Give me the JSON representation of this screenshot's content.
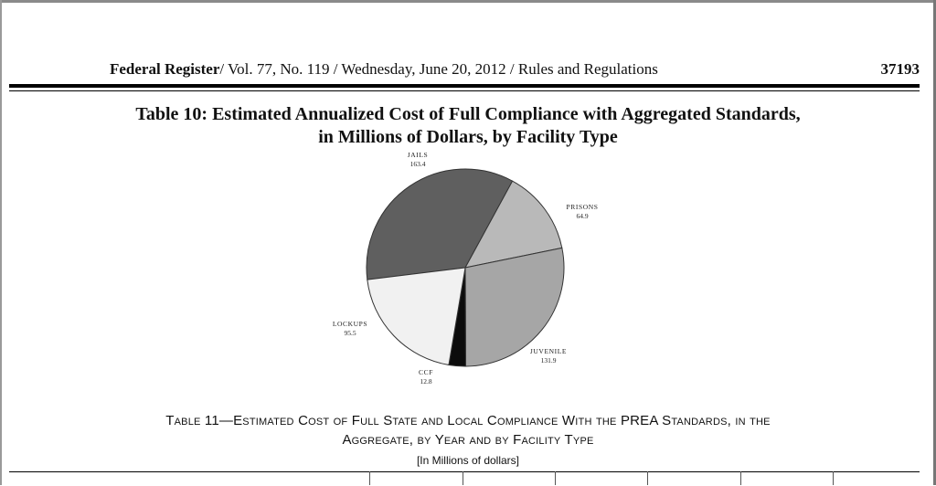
{
  "header": {
    "publication": "Federal Register",
    "citation": "/ Vol. 77, No. 119 / Wednesday, June 20, 2012 / Rules and Regulations",
    "page_number": "37193"
  },
  "table10": {
    "title_line1": "Table 10: Estimated Annualized Cost of Full Compliance with Aggregated Standards,",
    "title_line2": "in Millions of Dollars, by Facility Type"
  },
  "chart_data": {
    "type": "pie",
    "title": "Table 10: Estimated Annualized Cost of Full Compliance with Aggregated Standards, in Millions of Dollars, by Facility Type",
    "slices": [
      {
        "label": "JAILS",
        "value": 163.4,
        "value_label": "163.4",
        "color": "#5f5f5f"
      },
      {
        "label": "PRISONS",
        "value": 64.9,
        "value_label": "64.9",
        "color": "#b9b9b9"
      },
      {
        "label": "JUVENILE",
        "value": 131.9,
        "value_label": "131.9",
        "color": "#a6a6a6"
      },
      {
        "label": "CCF",
        "value": 12.8,
        "value_label": "12.8",
        "color": "#0c0c0c"
      },
      {
        "label": "LOCKUPS",
        "value": 95.5,
        "value_label": "95.5",
        "color": "#f1f1f1"
      }
    ]
  },
  "table11": {
    "title_line1": "Table 11—Estimated Cost of Full State and Local Compliance With the PREA Standards, in the",
    "title_line2": "Aggregate, by Year and by Facility Type",
    "subtitle": "[In Millions of dollars]"
  }
}
